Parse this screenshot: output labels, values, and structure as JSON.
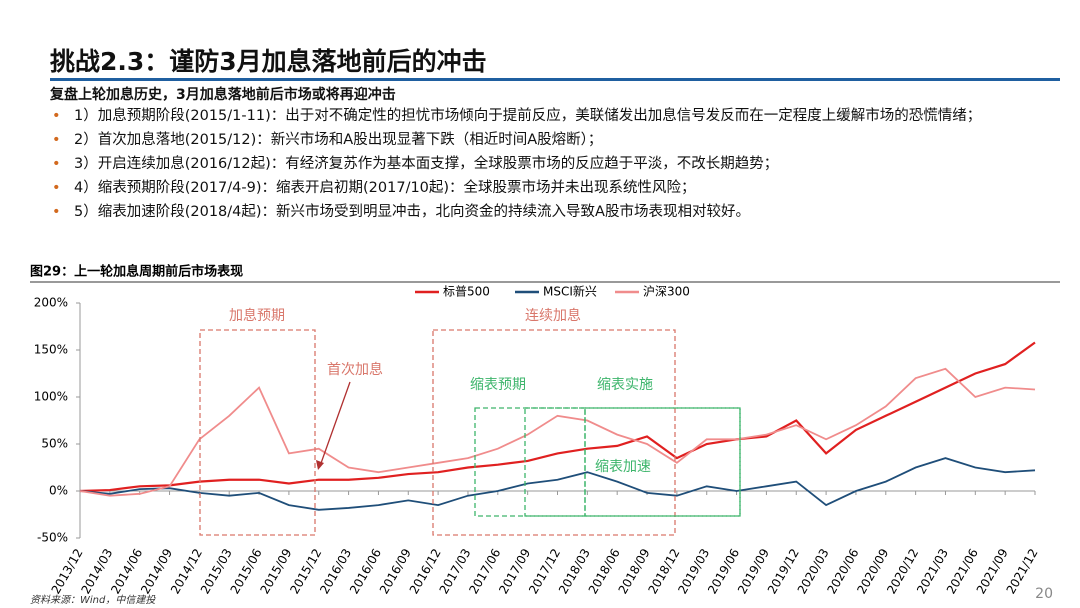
{
  "header": {
    "title": "挑战2.3：谨防3月加息落地前后的冲击",
    "subtitle": "复盘上轮加息历史，3月加息落地前后市场或将再迎冲击"
  },
  "bullets": [
    "1）加息预期阶段(2015/1-11)：出于对不确定性的担忧市场倾向于提前反应，美联储发出加息信号发反而在一定程度上缓解市场的恐慌情绪；",
    "2）首次加息落地(2015/12)：新兴市场和A股出现显著下跌（相近时间A股熔断）；",
    "3）开启连续加息(2016/12起)：有经济复苏作为基本面支撑，全球股票市场的反应趋于平淡，不改长期趋势；",
    "4）缩表预期阶段(2017/4-9)：缩表开启初期(2017/10起)：全球股票市场并未出现系统性风险；",
    "5）缩表加速阶段(2018/4起)：新兴市场受到明显冲击，北向资金的持续流入导致A股市场表现相对较好。"
  ],
  "chart_data": {
    "type": "line",
    "title": "图29：上一轮加息周期前后市场表现",
    "categories": [
      "2013/12",
      "2014/03",
      "2014/06",
      "2014/09",
      "2014/12",
      "2015/03",
      "2015/06",
      "2015/09",
      "2015/12",
      "2016/03",
      "2016/06",
      "2016/09",
      "2016/12",
      "2017/03",
      "2017/06",
      "2017/09",
      "2017/12",
      "2018/03",
      "2018/06",
      "2018/09",
      "2018/12",
      "2019/03",
      "2019/06",
      "2019/09",
      "2019/12",
      "2020/03",
      "2020/06",
      "2020/09",
      "2020/12",
      "2021/03",
      "2021/06",
      "2021/09",
      "2021/12"
    ],
    "series": [
      {
        "name": "标普500",
        "color": "#e02020",
        "values": [
          0,
          1,
          5,
          6,
          10,
          12,
          12,
          8,
          12,
          12,
          14,
          18,
          20,
          25,
          28,
          32,
          40,
          45,
          48,
          58,
          35,
          50,
          55,
          58,
          75,
          40,
          65,
          80,
          95,
          110,
          125,
          135,
          158
        ]
      },
      {
        "name": "MSCI新兴",
        "color": "#1f4e79",
        "values": [
          0,
          -3,
          2,
          3,
          -2,
          -5,
          -2,
          -15,
          -20,
          -18,
          -15,
          -10,
          -15,
          -5,
          0,
          8,
          12,
          20,
          10,
          -2,
          -5,
          5,
          0,
          5,
          10,
          -15,
          0,
          10,
          25,
          35,
          25,
          20,
          22
        ]
      },
      {
        "name": "沪深300",
        "color": "#f08c8c",
        "values": [
          0,
          -5,
          -3,
          5,
          55,
          80,
          110,
          40,
          45,
          25,
          20,
          25,
          30,
          35,
          45,
          60,
          80,
          75,
          60,
          50,
          30,
          55,
          55,
          60,
          70,
          55,
          70,
          90,
          120,
          130,
          100,
          110,
          108
        ]
      }
    ],
    "ylim": [
      -50,
      200
    ],
    "yticks": [
      {
        "value": -50,
        "label": "-50%"
      },
      {
        "value": 0,
        "label": "0%"
      },
      {
        "value": 50,
        "label": "50%"
      },
      {
        "value": 100,
        "label": "100%"
      },
      {
        "value": 150,
        "label": "150%"
      },
      {
        "value": 200,
        "label": "200%"
      }
    ],
    "annotations": [
      "加息预期",
      "首次加息",
      "连续加息",
      "缩表预期",
      "缩表实施",
      "缩表加速"
    ],
    "source": "资料来源：Wind，中信建投"
  },
  "page_number": "20"
}
